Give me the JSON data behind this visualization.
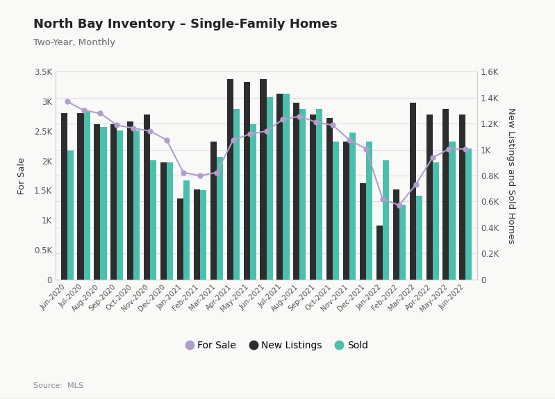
{
  "title": "North Bay Inventory – Single-Family Homes",
  "subtitle": "Two-Year, Monthly",
  "source": "Source:  MLS",
  "ylabel_left": "For Sale",
  "ylabel_right": "New Listings and Sold Homes",
  "ylim_left": [
    0,
    3500
  ],
  "ylim_right": [
    0,
    1600
  ],
  "yticks_left": [
    0,
    500,
    1000,
    1500,
    2000,
    2500,
    3000,
    3500
  ],
  "yticks_right": [
    0,
    200,
    400,
    600,
    800,
    1000,
    1200,
    1400,
    1600
  ],
  "ytick_labels_left": [
    "0",
    "0.5K",
    "1K",
    "1.5K",
    "2K",
    "2.5K",
    "3K",
    "3.5K"
  ],
  "ytick_labels_right": [
    "0",
    "0.2K",
    "0.4K",
    "0.6K",
    "0.8K",
    "1K",
    "1.2K",
    "1.4K",
    "1.6K"
  ],
  "categories": [
    "Jun-2020",
    "Jul-2020",
    "Aug-2020",
    "Sep-2020",
    "Oct-2020",
    "Nov-2020",
    "Dec-2020",
    "Jan-2021",
    "Feb-2021",
    "Mar-2021",
    "Apr-2021",
    "May-2021",
    "Jun-2021",
    "Jul-2021",
    "Aug-2021",
    "Sep-2021",
    "Oct-2021",
    "Nov-2021",
    "Dec-2021",
    "Jan-2022",
    "Feb-2022",
    "Mar-2022",
    "Apr-2022",
    "May-2022",
    "Jun-2022"
  ],
  "for_sale": [
    3000,
    2850,
    2800,
    2600,
    2550,
    2500,
    2350,
    1800,
    1750,
    1800,
    2350,
    2450,
    2500,
    2700,
    2750,
    2650,
    2600,
    2350,
    2200,
    1350,
    1250,
    1600,
    2050,
    2200,
    2200
  ],
  "new_listings": [
    1280,
    1280,
    1195,
    1195,
    1220,
    1270,
    900,
    625,
    695,
    1060,
    1545,
    1520,
    1545,
    1430,
    1360,
    1270,
    1245,
    1060,
    740,
    415,
    695,
    1360,
    1270,
    1315,
    1270
  ],
  "sold": [
    990,
    1290,
    1175,
    1150,
    1150,
    920,
    900,
    760,
    690,
    945,
    1315,
    1195,
    1405,
    1430,
    1315,
    1315,
    1060,
    1130,
    1060,
    920,
    575,
    645,
    900,
    1060,
    1010
  ],
  "bar_color_new": "#2d2d2d",
  "bar_color_sold": "#4abfab",
  "line_color_forsale": "#b09fcc",
  "background_color": "#f9f9f7",
  "grid_color": "#dddddd",
  "legend_forsale": "For Sale",
  "legend_new": "New Listings",
  "legend_sold": "Sold"
}
